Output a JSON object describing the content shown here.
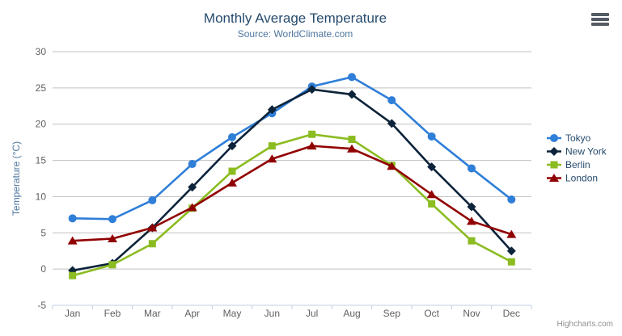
{
  "chart": {
    "title": "Monthly Average Temperature",
    "subtitle": "Source: WorldClimate.com",
    "credits": "Highcharts.com",
    "export_menu_icon": "hamburger-icon"
  },
  "chart_data": {
    "type": "line",
    "title": "Monthly Average Temperature",
    "subtitle": "Source: WorldClimate.com",
    "xlabel": "",
    "ylabel": "Temperature (°C)",
    "categories": [
      "Jan",
      "Feb",
      "Mar",
      "Apr",
      "May",
      "Jun",
      "Jul",
      "Aug",
      "Sep",
      "Oct",
      "Nov",
      "Dec"
    ],
    "ylim": [
      -5,
      30
    ],
    "yticks": [
      -5,
      0,
      5,
      10,
      15,
      20,
      25,
      30
    ],
    "grid": true,
    "legend_position": "right",
    "series": [
      {
        "name": "Tokyo",
        "color": "#2f7ed8",
        "marker": "circle",
        "values": [
          7.0,
          6.9,
          9.5,
          14.5,
          18.2,
          21.5,
          25.2,
          26.5,
          23.3,
          18.3,
          13.9,
          9.6
        ]
      },
      {
        "name": "New York",
        "color": "#0d233a",
        "marker": "diamond",
        "values": [
          -0.2,
          0.8,
          5.7,
          11.3,
          17.0,
          22.0,
          24.8,
          24.1,
          20.1,
          14.1,
          8.6,
          2.5
        ]
      },
      {
        "name": "Berlin",
        "color": "#8bbc21",
        "marker": "square",
        "values": [
          -0.9,
          0.6,
          3.5,
          8.4,
          13.5,
          17.0,
          18.6,
          17.9,
          14.3,
          9.0,
          3.9,
          1.0
        ]
      },
      {
        "name": "London",
        "color": "#910000",
        "marker": "triangle",
        "values": [
          3.9,
          4.2,
          5.7,
          8.5,
          11.9,
          15.2,
          17.0,
          16.6,
          14.2,
          10.3,
          6.6,
          4.8
        ]
      }
    ]
  },
  "colors": {
    "background": "#ffffff",
    "title": "#274b6d",
    "subtitle": "#4d759e",
    "axis_title": "#4d759e",
    "axis_labels": "#606060",
    "grid": "#c0c0c0",
    "axis_line": "#c0d0e0",
    "legend_text": "#274b6d",
    "credits": "#909090"
  }
}
